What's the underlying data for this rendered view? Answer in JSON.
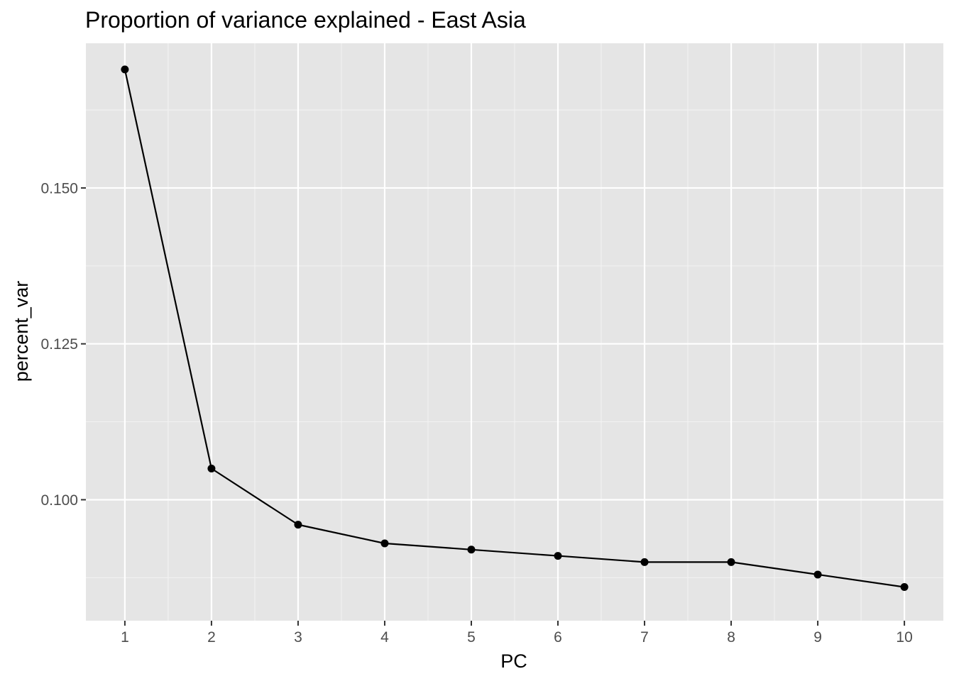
{
  "chart_data": {
    "type": "line",
    "title": "Proportion of variance explained - East Asia",
    "xlabel": "PC",
    "ylabel": "percent_var",
    "x": [
      1,
      2,
      3,
      4,
      5,
      6,
      7,
      8,
      9,
      10
    ],
    "series": [
      {
        "values": [
          0.169,
          0.105,
          0.096,
          0.093,
          0.092,
          0.091,
          0.09,
          0.09,
          0.088,
          0.086
        ]
      }
    ],
    "x_ticks": [
      "1",
      "2",
      "3",
      "4",
      "5",
      "6",
      "7",
      "8",
      "9",
      "10"
    ],
    "y_ticks": [
      0.1,
      0.125,
      0.15
    ],
    "y_tick_labels": [
      "0.100",
      "0.125",
      "0.150"
    ],
    "y_minor_ticks": [
      0.0875,
      0.1125,
      0.1375,
      0.1625
    ],
    "x_minor_ticks": [
      1.5,
      2.5,
      3.5,
      4.5,
      5.5,
      6.5,
      7.5,
      8.5,
      9.5
    ],
    "xlim": [
      0.55,
      10.45
    ],
    "ylim": [
      0.0806,
      0.1732
    ],
    "grid": true,
    "legend": "none",
    "colors": {
      "panel_background": "#e5e5e5",
      "major_grid": "#ffffff",
      "minor_grid": "#f2f2f2",
      "line": "#000000",
      "points": "#000000",
      "tick_text": "#4d4d4d",
      "tick_marks": "#333333"
    }
  }
}
